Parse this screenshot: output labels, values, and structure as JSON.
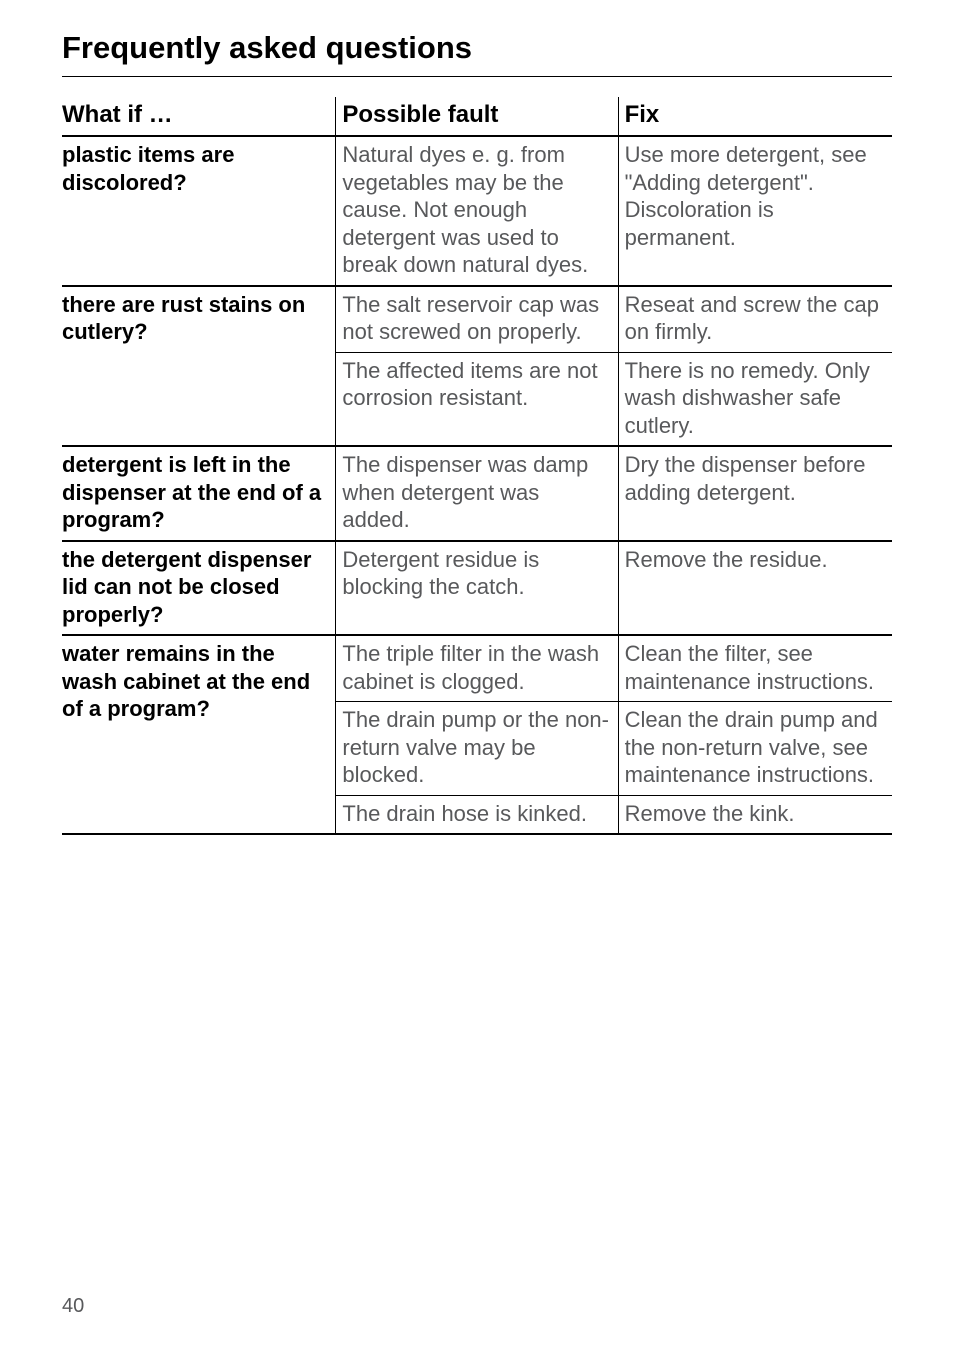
{
  "title": "Frequently asked questions",
  "headers": {
    "whatif": "What if …",
    "fault": "Possible fault",
    "fix": "Fix"
  },
  "rows": [
    {
      "whatif": "plastic items are discolored?",
      "faults": [
        {
          "fault": "Natural dyes e. g. from vegetables may be the cause. Not enough detergent was used to break down natural dyes.",
          "fix": "Use more detergent, see \"Adding detergent\". Discoloration is permanent."
        }
      ]
    },
    {
      "whatif": "there are rust stains on cutlery?",
      "faults": [
        {
          "fault": "The salt reservoir cap was not screwed on properly.",
          "fix": "Reseat and screw the cap on firmly."
        },
        {
          "fault": "The affected items are not corrosion resistant.",
          "fix": "There is no remedy. Only wash dishwasher safe cutlery."
        }
      ]
    },
    {
      "whatif": "detergent is left in the dispenser at the end of a program?",
      "faults": [
        {
          "fault": "The dispenser was damp when detergent was added.",
          "fix": "Dry the dispenser before adding detergent."
        }
      ]
    },
    {
      "whatif": "the detergent dispenser lid can not be closed properly?",
      "faults": [
        {
          "fault": "Detergent residue is blocking the catch.",
          "fix": "Remove the residue."
        }
      ]
    },
    {
      "whatif": "water remains in the wash cabinet at the end of a program?",
      "faults": [
        {
          "fault": "The triple filter in the wash cabinet is clogged.",
          "fix": "Clean the filter, see maintenance instructions."
        },
        {
          "fault": "The drain pump or the non-return valve may be blocked.",
          "fix": "Clean the drain pump and the non-return valve, see maintenance instructions."
        },
        {
          "fault": "The drain hose is kinked.",
          "fix": "Remove the kink."
        }
      ]
    }
  ],
  "page_number": "40",
  "colors": {
    "text_primary": "#000000",
    "text_secondary": "#58595b",
    "background": "#ffffff",
    "rule": "#000000"
  }
}
